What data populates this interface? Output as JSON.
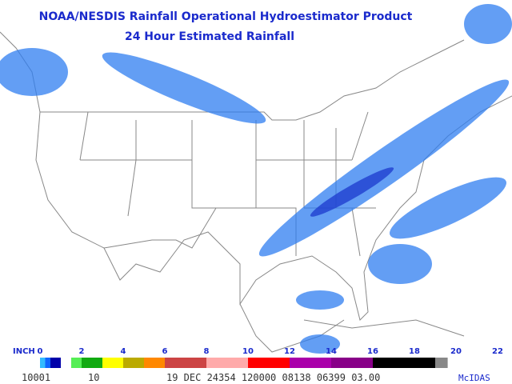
{
  "header": {
    "title": "NOAA/NESDIS Rainfall Operational Hydroestimator Product",
    "subtitle": "24 Hour Estimated Rainfall"
  },
  "legend": {
    "unit": "INCH",
    "ticks": [
      0,
      2,
      4,
      6,
      8,
      10,
      12,
      14,
      16,
      18,
      20,
      22
    ],
    "bands": [
      {
        "from": 0,
        "to": 0.25,
        "color": "#33bbff"
      },
      {
        "from": 0.25,
        "to": 0.5,
        "color": "#1166ff"
      },
      {
        "from": 0.5,
        "to": 1,
        "color": "#0000aa"
      },
      {
        "from": 1,
        "to": 1.5,
        "color": "#ffffff"
      },
      {
        "from": 1.5,
        "to": 2,
        "color": "#55ee55"
      },
      {
        "from": 2,
        "to": 3,
        "color": "#11aa11"
      },
      {
        "from": 3,
        "to": 4,
        "color": "#ffff00"
      },
      {
        "from": 4,
        "to": 5,
        "color": "#bbaa00"
      },
      {
        "from": 5,
        "to": 6,
        "color": "#ff8800"
      },
      {
        "from": 6,
        "to": 8,
        "color": "#cc4444"
      },
      {
        "from": 8,
        "to": 10,
        "color": "#ffaaaa"
      },
      {
        "from": 10,
        "to": 12,
        "color": "#ff0000"
      },
      {
        "from": 12,
        "to": 14,
        "color": "#aa00aa"
      },
      {
        "from": 14,
        "to": 16,
        "color": "#880088"
      },
      {
        "from": 16,
        "to": 19,
        "color": "#000000"
      },
      {
        "from": 19,
        "to": 19.6,
        "color": "#888888"
      }
    ]
  },
  "footer": {
    "fields": [
      "10001",
      "10",
      "19 DEC 24354 120000 08138 06399 03.00"
    ],
    "brand": "McIDAS"
  }
}
